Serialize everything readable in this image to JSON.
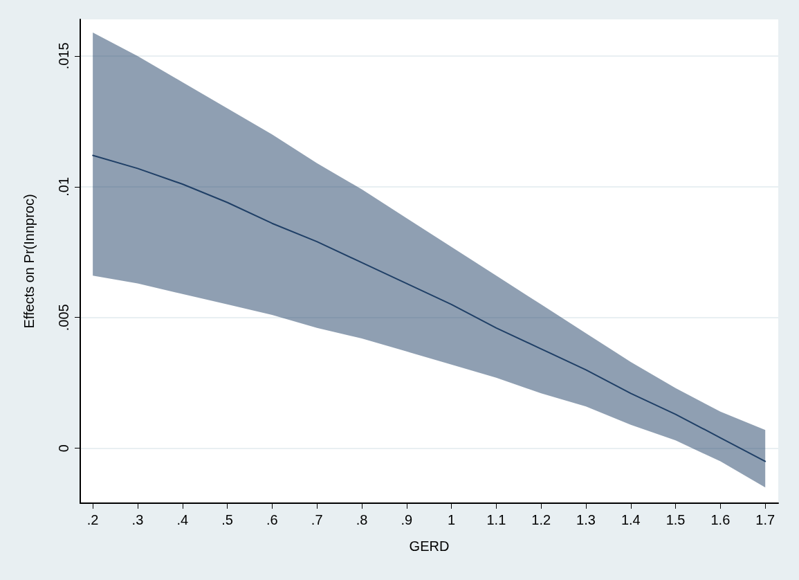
{
  "chart_data": {
    "type": "line",
    "xlabel": "GERD",
    "ylabel": "Effects on Pr(Innproc)",
    "x": [
      0.2,
      0.3,
      0.4,
      0.5,
      0.6,
      0.7,
      0.8,
      0.9,
      1.0,
      1.1,
      1.2,
      1.3,
      1.4,
      1.5,
      1.6,
      1.7
    ],
    "series": [
      {
        "color": "#1f3f66",
        "values": [
          0.0112,
          0.0107,
          0.0101,
          0.0094,
          0.0086,
          0.0079,
          0.0071,
          0.0063,
          0.0055,
          0.0046,
          0.0038,
          0.003,
          0.0021,
          0.0013,
          0.0004,
          -0.0005
        ],
        "lower": [
          0.0066,
          0.0063,
          0.0059,
          0.0055,
          0.0051,
          0.0046,
          0.0042,
          0.0037,
          0.0032,
          0.0027,
          0.0021,
          0.0016,
          0.0009,
          0.0003,
          -0.0005,
          -0.0015
        ],
        "upper": [
          0.0159,
          0.015,
          0.014,
          0.013,
          0.012,
          0.0109,
          0.0099,
          0.0088,
          0.0077,
          0.0066,
          0.0055,
          0.0044,
          0.0033,
          0.0023,
          0.0014,
          0.0007
        ]
      }
    ],
    "xlim": [
      0.172,
      1.729
    ],
    "xticks": [
      {
        "value": 0.2,
        "label": ".2"
      },
      {
        "value": 0.3,
        "label": ".3"
      },
      {
        "value": 0.4,
        "label": ".4"
      },
      {
        "value": 0.5,
        "label": ".5"
      },
      {
        "value": 0.6,
        "label": ".6"
      },
      {
        "value": 0.7,
        "label": ".7"
      },
      {
        "value": 0.8,
        "label": ".8"
      },
      {
        "value": 0.9,
        "label": ".9"
      },
      1,
      1.1,
      1.2,
      1.3,
      1.4,
      1.5,
      1.6,
      1.7
    ],
    "ylim": [
      -0.0021,
      0.0164
    ],
    "yticks": [
      0,
      {
        "value": 0.005,
        "label": ".005"
      },
      {
        "value": 0.01,
        "label": ".01"
      },
      {
        "value": 0.015,
        "label": ".015"
      }
    ],
    "grid": "y",
    "marker": "none",
    "line_style": "solid"
  }
}
